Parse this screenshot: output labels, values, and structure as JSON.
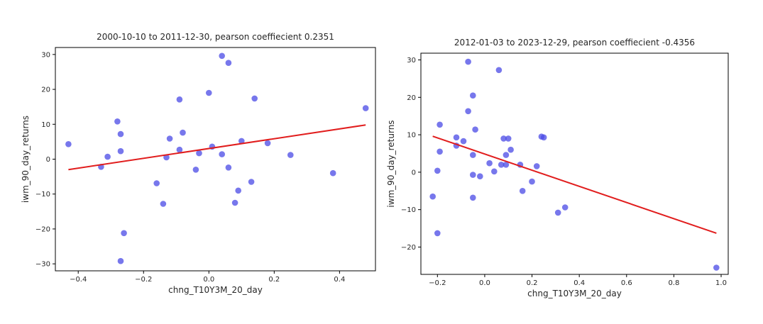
{
  "chart_data": [
    {
      "type": "scatter",
      "title": "2000-10-10 to 2011-12-30, pearson coeffiecient 0.2351",
      "xlabel": "chng_T10Y3M_20_day",
      "ylabel": "iwm_90_day_returns",
      "xlim": [
        -0.47,
        0.51
      ],
      "ylim": [
        -32,
        32
      ],
      "xticks": [
        -0.4,
        -0.2,
        0.0,
        0.2,
        0.4
      ],
      "xtick_labels": [
        "−0.4",
        "−0.2",
        "0.0",
        "0.2",
        "0.4"
      ],
      "yticks": [
        -30,
        -20,
        -10,
        0,
        10,
        20,
        30
      ],
      "ytick_labels": [
        "−30",
        "−20",
        "−10",
        "0",
        "10",
        "20",
        "30"
      ],
      "grid": false,
      "colors": {
        "points": "#4a4ae6",
        "line": "#e11d1d"
      },
      "points": [
        {
          "x": -0.43,
          "y": 4.3
        },
        {
          "x": -0.33,
          "y": -2.2
        },
        {
          "x": -0.31,
          "y": 0.7
        },
        {
          "x": -0.28,
          "y": 10.8
        },
        {
          "x": -0.27,
          "y": 7.2
        },
        {
          "x": -0.27,
          "y": 2.3
        },
        {
          "x": -0.26,
          "y": -21.2
        },
        {
          "x": -0.27,
          "y": -29.2
        },
        {
          "x": -0.16,
          "y": -6.9
        },
        {
          "x": -0.14,
          "y": -12.8
        },
        {
          "x": -0.13,
          "y": 0.5
        },
        {
          "x": -0.12,
          "y": 5.9
        },
        {
          "x": -0.09,
          "y": 17.1
        },
        {
          "x": -0.09,
          "y": 2.7
        },
        {
          "x": -0.08,
          "y": 7.6
        },
        {
          "x": -0.04,
          "y": -3.0
        },
        {
          "x": -0.03,
          "y": 1.7
        },
        {
          "x": 0.0,
          "y": 19.0
        },
        {
          "x": 0.01,
          "y": 3.6
        },
        {
          "x": 0.04,
          "y": 29.6
        },
        {
          "x": 0.04,
          "y": 1.4
        },
        {
          "x": 0.06,
          "y": 27.6
        },
        {
          "x": 0.06,
          "y": -2.4
        },
        {
          "x": 0.08,
          "y": -12.5
        },
        {
          "x": 0.09,
          "y": -9.0
        },
        {
          "x": 0.1,
          "y": 5.2
        },
        {
          "x": 0.13,
          "y": -6.5
        },
        {
          "x": 0.14,
          "y": 17.4
        },
        {
          "x": 0.18,
          "y": 4.6
        },
        {
          "x": 0.25,
          "y": 1.2
        },
        {
          "x": 0.38,
          "y": -4.0
        },
        {
          "x": 0.48,
          "y": 14.6
        }
      ],
      "trendline": {
        "x": [
          -0.43,
          0.48
        ],
        "y": [
          -3.0,
          9.8
        ]
      }
    },
    {
      "type": "scatter",
      "title": "2012-01-03 to 2023-12-29, pearson coeffiecient -0.4356",
      "xlabel": "chng_T10Y3M_20_day",
      "ylabel": "iwm_90_day_returns",
      "xlim": [
        -0.27,
        1.03
      ],
      "ylim": [
        -27.3,
        31.8
      ],
      "xticks": [
        -0.2,
        0.0,
        0.2,
        0.4,
        0.6,
        0.8,
        1.0
      ],
      "xtick_labels": [
        "−0.2",
        "0.0",
        "0.2",
        "0.4",
        "0.6",
        "0.8",
        "1.0"
      ],
      "yticks": [
        -20,
        -10,
        0,
        10,
        20,
        30
      ],
      "ytick_labels": [
        "−20",
        "−10",
        "0",
        "10",
        "20",
        "30"
      ],
      "grid": false,
      "colors": {
        "points": "#4a4ae6",
        "line": "#e11d1d"
      },
      "points": [
        {
          "x": -0.22,
          "y": -6.5
        },
        {
          "x": -0.2,
          "y": -16.3
        },
        {
          "x": -0.2,
          "y": 0.4
        },
        {
          "x": -0.19,
          "y": 12.7
        },
        {
          "x": -0.19,
          "y": 5.5
        },
        {
          "x": -0.12,
          "y": 9.3
        },
        {
          "x": -0.12,
          "y": 7.1
        },
        {
          "x": -0.09,
          "y": 8.3
        },
        {
          "x": -0.07,
          "y": 29.5
        },
        {
          "x": -0.07,
          "y": 16.3
        },
        {
          "x": -0.05,
          "y": 20.5
        },
        {
          "x": -0.05,
          "y": 4.6
        },
        {
          "x": -0.05,
          "y": -0.7
        },
        {
          "x": -0.05,
          "y": -6.8
        },
        {
          "x": -0.04,
          "y": 11.4
        },
        {
          "x": -0.02,
          "y": -1.1
        },
        {
          "x": 0.02,
          "y": 2.4
        },
        {
          "x": 0.04,
          "y": 0.2
        },
        {
          "x": 0.06,
          "y": 27.3
        },
        {
          "x": 0.07,
          "y": 2.0
        },
        {
          "x": 0.08,
          "y": 9.0
        },
        {
          "x": 0.09,
          "y": 4.6
        },
        {
          "x": 0.09,
          "y": 2.0
        },
        {
          "x": 0.1,
          "y": 9.0
        },
        {
          "x": 0.11,
          "y": 6.0
        },
        {
          "x": 0.15,
          "y": 2.0
        },
        {
          "x": 0.16,
          "y": -5.0
        },
        {
          "x": 0.2,
          "y": -2.5
        },
        {
          "x": 0.22,
          "y": 1.6
        },
        {
          "x": 0.24,
          "y": 9.5
        },
        {
          "x": 0.25,
          "y": 9.3
        },
        {
          "x": 0.31,
          "y": -10.8
        },
        {
          "x": 0.34,
          "y": -9.4
        },
        {
          "x": 0.98,
          "y": -25.5
        }
      ],
      "trendline": {
        "x": [
          -0.22,
          0.98
        ],
        "y": [
          9.6,
          -16.3
        ]
      }
    }
  ]
}
